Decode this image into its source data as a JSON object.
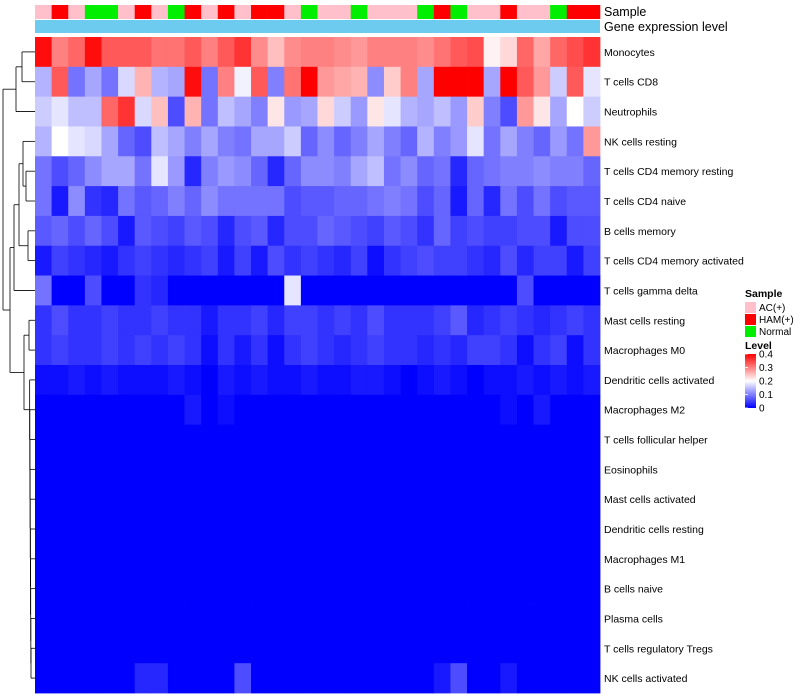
{
  "chart_data": {
    "type": "heatmap",
    "title": "",
    "annotation_labels": {
      "sample": "Sample",
      "expr": "Gene expression level"
    },
    "sample_groups": [
      "AC(+)",
      "HAM(+)",
      "AC(+)",
      "Normal",
      "Normal",
      "AC(+)",
      "HAM(+)",
      "AC(+)",
      "Normal",
      "HAM(+)",
      "AC(+)",
      "HAM(+)",
      "AC(+)",
      "HAM(+)",
      "HAM(+)",
      "AC(+)",
      "Normal",
      "AC(+)",
      "AC(+)",
      "Normal",
      "AC(+)",
      "AC(+)",
      "AC(+)",
      "Normal",
      "HAM(+)",
      "Normal",
      "AC(+)",
      "AC(+)",
      "HAM(+)",
      "AC(+)",
      "AC(+)",
      "Normal",
      "HAM(+)",
      "HAM(+)"
    ],
    "rows": [
      "Monocytes",
      "T cells CD8",
      "Neutrophils",
      "NK cells resting",
      "T cells CD4 memory resting",
      "T cells CD4 naive",
      "B cells memory",
      "T cells CD4 memory activated",
      "T cells gamma delta",
      "Mast cells resting",
      "Macrophages M0",
      "Dendritic cells activated",
      "Macrophages M2",
      "T cells follicular helper",
      "Eosinophils",
      "Mast cells activated",
      "Dendritic cells resting",
      "Macrophages M1",
      "B cells naive",
      "Plasma cells",
      "T cells regulatory  Tregs",
      "NK cells activated"
    ],
    "values": [
      [
        0.39,
        0.3,
        0.32,
        0.39,
        0.33,
        0.33,
        0.33,
        0.31,
        0.31,
        0.33,
        0.3,
        0.33,
        0.36,
        0.29,
        0.25,
        0.29,
        0.3,
        0.3,
        0.29,
        0.28,
        0.3,
        0.3,
        0.3,
        0.29,
        0.31,
        0.33,
        0.34,
        0.21,
        0.23,
        0.32,
        0.27,
        0.32,
        0.34,
        0.36
      ],
      [
        0.14,
        0.33,
        0.09,
        0.13,
        0.09,
        0.17,
        0.26,
        0.14,
        0.13,
        0.39,
        0.09,
        0.3,
        0.19,
        0.33,
        0.1,
        0.31,
        0.4,
        0.28,
        0.27,
        0.26,
        0.11,
        0.24,
        0.3,
        0.13,
        0.4,
        0.4,
        0.4,
        0.13,
        0.4,
        0.33,
        0.28,
        0.16,
        0.33,
        0.18
      ],
      [
        0.16,
        0.18,
        0.15,
        0.15,
        0.32,
        0.36,
        0.17,
        0.25,
        0.06,
        0.26,
        0.09,
        0.15,
        0.13,
        0.1,
        0.22,
        0.12,
        0.13,
        0.23,
        0.16,
        0.12,
        0.22,
        0.18,
        0.14,
        0.13,
        0.15,
        0.12,
        0.24,
        0.1,
        0.06,
        0.28,
        0.22,
        0.13,
        0.2,
        0.16
      ],
      [
        0.14,
        0.2,
        0.18,
        0.17,
        0.13,
        0.08,
        0.06,
        0.15,
        0.13,
        0.1,
        0.13,
        0.1,
        0.09,
        0.13,
        0.13,
        0.16,
        0.08,
        0.11,
        0.08,
        0.1,
        0.13,
        0.1,
        0.08,
        0.14,
        0.1,
        0.12,
        0.18,
        0.09,
        0.13,
        0.1,
        0.08,
        0.12,
        0.09,
        0.28
      ],
      [
        0.09,
        0.06,
        0.08,
        0.11,
        0.13,
        0.13,
        0.09,
        0.18,
        0.12,
        0.03,
        0.1,
        0.12,
        0.11,
        0.08,
        0.03,
        0.08,
        0.11,
        0.11,
        0.1,
        0.13,
        0.15,
        0.09,
        0.11,
        0.08,
        0.09,
        0.03,
        0.08,
        0.09,
        0.1,
        0.1,
        0.11,
        0.1,
        0.1,
        0.08
      ],
      [
        0.09,
        0.02,
        0.11,
        0.04,
        0.03,
        0.09,
        0.07,
        0.08,
        0.1,
        0.08,
        0.11,
        0.09,
        0.09,
        0.09,
        0.09,
        0.06,
        0.07,
        0.07,
        0.08,
        0.08,
        0.09,
        0.1,
        0.09,
        0.06,
        0.08,
        0.02,
        0.08,
        0.03,
        0.09,
        0.06,
        0.09,
        0.06,
        0.07,
        0.07
      ],
      [
        0.07,
        0.08,
        0.06,
        0.08,
        0.06,
        0.02,
        0.07,
        0.06,
        0.05,
        0.07,
        0.06,
        0.03,
        0.06,
        0.07,
        0.03,
        0.06,
        0.06,
        0.08,
        0.07,
        0.06,
        0.05,
        0.07,
        0.06,
        0.04,
        0.08,
        0.05,
        0.06,
        0.05,
        0.05,
        0.06,
        0.06,
        0.02,
        0.06,
        0.06
      ],
      [
        0.02,
        0.05,
        0.04,
        0.03,
        0.02,
        0.04,
        0.05,
        0.04,
        0.03,
        0.04,
        0.05,
        0.02,
        0.05,
        0.02,
        0.06,
        0.04,
        0.05,
        0.04,
        0.03,
        0.05,
        0.01,
        0.04,
        0.05,
        0.06,
        0.05,
        0.05,
        0.04,
        0.03,
        0.06,
        0.03,
        0.05,
        0.05,
        0.02,
        0.05
      ],
      [
        0.09,
        0.0,
        0.0,
        0.06,
        0.0,
        0.0,
        0.04,
        0.03,
        0.0,
        0.0,
        0.0,
        0.0,
        0.0,
        0.0,
        0.0,
        0.18,
        0.0,
        0.0,
        0.0,
        0.0,
        0.0,
        0.0,
        0.0,
        0.0,
        0.0,
        0.0,
        0.0,
        0.0,
        0.0,
        0.06,
        0.0,
        0.0,
        0.0,
        0.0
      ],
      [
        0.04,
        0.06,
        0.04,
        0.04,
        0.05,
        0.04,
        0.04,
        0.05,
        0.04,
        0.04,
        0.02,
        0.04,
        0.04,
        0.05,
        0.03,
        0.05,
        0.05,
        0.04,
        0.05,
        0.04,
        0.06,
        0.04,
        0.04,
        0.04,
        0.05,
        0.07,
        0.03,
        0.04,
        0.05,
        0.04,
        0.03,
        0.04,
        0.05,
        0.04
      ],
      [
        0.04,
        0.05,
        0.04,
        0.04,
        0.05,
        0.04,
        0.05,
        0.04,
        0.05,
        0.04,
        0.01,
        0.04,
        0.02,
        0.04,
        0.01,
        0.04,
        0.05,
        0.04,
        0.03,
        0.04,
        0.05,
        0.04,
        0.04,
        0.03,
        0.04,
        0.03,
        0.05,
        0.05,
        0.04,
        0.01,
        0.04,
        0.05,
        0.01,
        0.04
      ],
      [
        0.01,
        0.01,
        0.02,
        0.01,
        0.02,
        0.01,
        0.01,
        0.01,
        0.02,
        0.01,
        0.0,
        0.02,
        0.01,
        0.02,
        0.01,
        0.01,
        0.02,
        0.01,
        0.01,
        0.02,
        0.02,
        0.01,
        0.0,
        0.01,
        0.02,
        0.01,
        0.0,
        0.01,
        0.01,
        0.02,
        0.01,
        0.02,
        0.01,
        0.02
      ],
      [
        0.0,
        0.0,
        0.0,
        0.0,
        0.0,
        0.0,
        0.0,
        0.0,
        0.0,
        0.02,
        0.0,
        0.01,
        0.0,
        0.0,
        0.0,
        0.0,
        0.0,
        0.0,
        0.0,
        0.0,
        0.0,
        0.0,
        0.0,
        0.0,
        0.0,
        0.0,
        0.0,
        0.0,
        0.01,
        0.0,
        0.02,
        0.0,
        0.0,
        0.0
      ],
      [
        0.0,
        0.0,
        0.0,
        0.0,
        0.0,
        0.0,
        0.0,
        0.0,
        0.0,
        0.0,
        0.0,
        0.0,
        0.0,
        0.0,
        0.0,
        0.0,
        0.0,
        0.0,
        0.0,
        0.0,
        0.0,
        0.0,
        0.0,
        0.0,
        0.0,
        0.0,
        0.0,
        0.0,
        0.0,
        0.0,
        0.0,
        0.0,
        0.0,
        0.0
      ],
      [
        0.0,
        0.0,
        0.0,
        0.0,
        0.0,
        0.0,
        0.0,
        0.0,
        0.0,
        0.0,
        0.0,
        0.0,
        0.0,
        0.0,
        0.0,
        0.0,
        0.0,
        0.0,
        0.0,
        0.0,
        0.0,
        0.0,
        0.0,
        0.0,
        0.0,
        0.0,
        0.0,
        0.0,
        0.0,
        0.0,
        0.0,
        0.0,
        0.0,
        0.0
      ],
      [
        0.0,
        0.0,
        0.0,
        0.0,
        0.0,
        0.0,
        0.0,
        0.0,
        0.0,
        0.0,
        0.0,
        0.0,
        0.0,
        0.0,
        0.0,
        0.0,
        0.0,
        0.0,
        0.0,
        0.0,
        0.0,
        0.0,
        0.0,
        0.0,
        0.0,
        0.0,
        0.0,
        0.0,
        0.0,
        0.0,
        0.0,
        0.0,
        0.0,
        0.0
      ],
      [
        0.0,
        0.0,
        0.0,
        0.0,
        0.0,
        0.0,
        0.0,
        0.0,
        0.0,
        0.0,
        0.0,
        0.0,
        0.0,
        0.0,
        0.0,
        0.0,
        0.0,
        0.0,
        0.0,
        0.0,
        0.0,
        0.0,
        0.0,
        0.0,
        0.0,
        0.0,
        0.0,
        0.0,
        0.0,
        0.0,
        0.0,
        0.0,
        0.0,
        0.0
      ],
      [
        0.0,
        0.0,
        0.0,
        0.0,
        0.0,
        0.0,
        0.0,
        0.0,
        0.0,
        0.0,
        0.0,
        0.0,
        0.0,
        0.0,
        0.0,
        0.0,
        0.0,
        0.0,
        0.0,
        0.0,
        0.0,
        0.0,
        0.0,
        0.0,
        0.0,
        0.0,
        0.0,
        0.0,
        0.0,
        0.0,
        0.0,
        0.0,
        0.0,
        0.0
      ],
      [
        0.0,
        0.0,
        0.0,
        0.0,
        0.0,
        0.0,
        0.0,
        0.0,
        0.0,
        0.0,
        0.0,
        0.0,
        0.0,
        0.0,
        0.0,
        0.0,
        0.0,
        0.0,
        0.0,
        0.0,
        0.0,
        0.0,
        0.0,
        0.0,
        0.0,
        0.0,
        0.0,
        0.0,
        0.0,
        0.0,
        0.0,
        0.0,
        0.0,
        0.0
      ],
      [
        0.0,
        0.0,
        0.0,
        0.0,
        0.0,
        0.0,
        0.0,
        0.0,
        0.0,
        0.0,
        0.0,
        0.0,
        0.0,
        0.0,
        0.0,
        0.0,
        0.0,
        0.0,
        0.0,
        0.0,
        0.0,
        0.0,
        0.0,
        0.0,
        0.0,
        0.0,
        0.0,
        0.0,
        0.0,
        0.0,
        0.0,
        0.0,
        0.0,
        0.0
      ],
      [
        0.0,
        0.0,
        0.0,
        0.0,
        0.0,
        0.0,
        0.0,
        0.0,
        0.0,
        0.0,
        0.0,
        0.0,
        0.0,
        0.0,
        0.0,
        0.0,
        0.0,
        0.0,
        0.0,
        0.0,
        0.0,
        0.0,
        0.0,
        0.0,
        0.0,
        0.0,
        0.0,
        0.0,
        0.0,
        0.0,
        0.0,
        0.0,
        0.0,
        0.0
      ],
      [
        0.0,
        0.0,
        0.0,
        0.0,
        0.0,
        0.0,
        0.03,
        0.03,
        0.0,
        0.0,
        0.0,
        0.0,
        0.06,
        0.0,
        0.0,
        0.0,
        0.0,
        0.0,
        0.0,
        0.0,
        0.0,
        0.0,
        0.0,
        0.0,
        0.02,
        0.06,
        0.0,
        0.0,
        0.02,
        0.0,
        0.0,
        0.0,
        0.0,
        0.0
      ]
    ],
    "legend": {
      "sample_title": "Sample",
      "groups": [
        {
          "name": "AC(+)",
          "color": "#ffc0cb"
        },
        {
          "name": "HAM(+)",
          "color": "#ff0000"
        },
        {
          "name": "Normal",
          "color": "#00ee00"
        }
      ],
      "level_title": "Level",
      "level_ticks": [
        "0.4",
        "0.3",
        "0.2",
        "0.1",
        "0"
      ],
      "level_range": [
        0,
        0.4
      ]
    },
    "colors": {
      "low": "#0000ff",
      "mid": "#ffffff",
      "high": "#ff0000",
      "expr_bar": "#6ecbf0"
    }
  }
}
